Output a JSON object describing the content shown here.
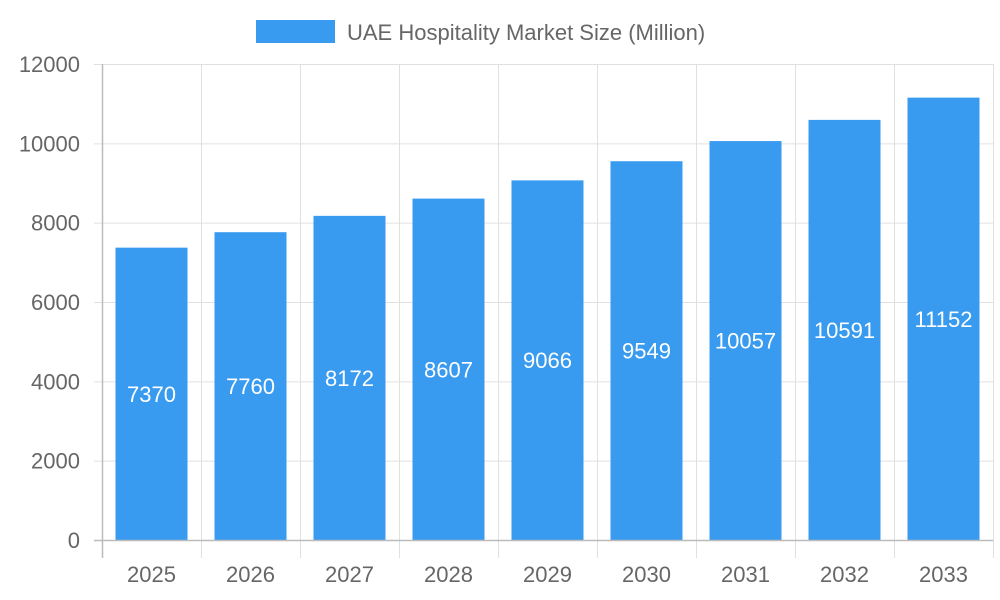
{
  "chart_data": {
    "type": "bar",
    "title": "",
    "xlabel": "",
    "ylabel": "",
    "categories": [
      "2025",
      "2026",
      "2027",
      "2028",
      "2029",
      "2030",
      "2031",
      "2032",
      "2033"
    ],
    "series": [
      {
        "name": "UAE Hospitality Market Size (Million)",
        "values": [
          7370,
          7760,
          8172,
          8607,
          9066,
          9549,
          10057,
          10591,
          11152
        ],
        "color": "#389BF0"
      }
    ],
    "ylim": [
      0,
      12000
    ],
    "yticks": [
      0,
      2000,
      4000,
      6000,
      8000,
      10000,
      12000
    ],
    "grid": true,
    "legend": "top-center",
    "data_labels": true
  }
}
